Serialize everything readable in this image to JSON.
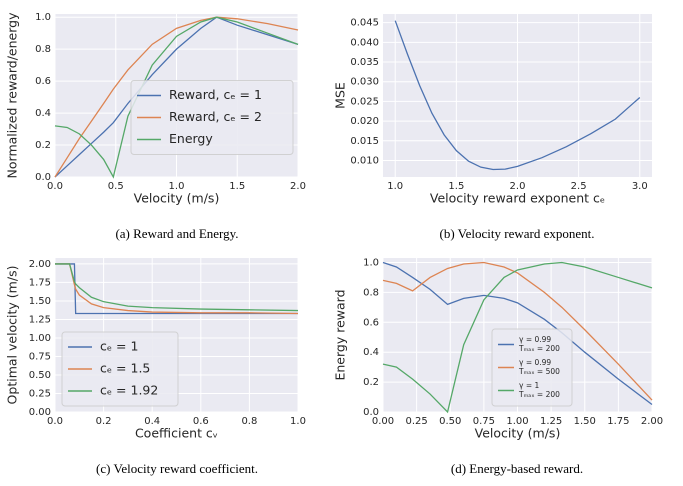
{
  "chart_data": [
    {
      "type": "line",
      "caption": "(a) Reward and Energy.",
      "x_label": "Velocity (m/s)",
      "y_label": "Normalized reward/energy",
      "x": [
        0,
        0.1,
        0.2,
        0.3,
        0.4,
        0.48,
        0.6,
        0.8,
        1.0,
        1.2,
        1.33,
        1.5,
        1.75,
        2.0
      ],
      "series": [
        {
          "name": "Reward, cₑ = 1",
          "color": "#4c72b0",
          "values": [
            0,
            0.07,
            0.14,
            0.21,
            0.28,
            0.34,
            0.46,
            0.64,
            0.8,
            0.93,
            1.0,
            0.95,
            0.89,
            0.83
          ]
        },
        {
          "name": "Reward, cₑ = 2",
          "color": "#dd8452",
          "values": [
            0,
            0.12,
            0.24,
            0.35,
            0.46,
            0.55,
            0.67,
            0.83,
            0.93,
            0.98,
            1.0,
            0.99,
            0.96,
            0.92
          ]
        },
        {
          "name": "Energy",
          "color": "#55a868",
          "values": [
            0.32,
            0.31,
            0.27,
            0.2,
            0.11,
            0.0,
            0.38,
            0.7,
            0.88,
            0.97,
            1.0,
            0.97,
            0.9,
            0.83
          ]
        }
      ],
      "xlim": [
        0,
        2
      ],
      "ylim": [
        0,
        1.02
      ],
      "xticks": [
        {
          "value": 0,
          "label": "0.0"
        },
        0.5,
        {
          "value": 1,
          "label": "1.0"
        },
        1.5,
        {
          "value": 2,
          "label": "2.0"
        }
      ],
      "yticks": [
        {
          "value": 0,
          "label": "0.0"
        },
        0.2,
        0.4,
        0.6,
        0.8,
        {
          "value": 1,
          "label": "1.0"
        }
      ],
      "grid": true,
      "legend": "center right"
    },
    {
      "type": "line",
      "caption": "(b) Velocity reward exponent.",
      "x_label": "Velocity reward exponent cₑ",
      "y_label": "MSE",
      "x": [
        1.0,
        1.1,
        1.2,
        1.3,
        1.4,
        1.5,
        1.6,
        1.7,
        1.8,
        1.9,
        2.0,
        2.2,
        2.4,
        2.6,
        2.8,
        3.0
      ],
      "series": [
        {
          "color": "#4c72b0",
          "values": [
            0.0455,
            0.037,
            0.029,
            0.022,
            0.0165,
            0.0125,
            0.0098,
            0.0083,
            0.0077,
            0.0078,
            0.0085,
            0.0107,
            0.0135,
            0.0168,
            0.0205,
            0.026
          ]
        }
      ],
      "xlim": [
        0.9,
        3.1
      ],
      "ylim": [
        0.0058,
        0.0472
      ],
      "xticks": [
        {
          "value": 1,
          "label": "1.0"
        },
        1.5,
        {
          "value": 2,
          "label": "2.0"
        },
        2.5,
        {
          "value": 3,
          "label": "3.0"
        }
      ],
      "yticks": [
        {
          "value": 0.01,
          "label": "0.010"
        },
        0.015,
        {
          "value": 0.02,
          "label": "0.020"
        },
        0.025,
        {
          "value": 0.03,
          "label": "0.030"
        },
        0.035,
        {
          "value": 0.04,
          "label": "0.040"
        },
        0.045
      ],
      "grid": true
    },
    {
      "type": "line",
      "caption": "(c) Velocity reward coefficient.",
      "x_label": "Coefficient cᵥ",
      "y_label": "Optimal velocity (m/s)",
      "x": [
        0,
        0.02,
        0.04,
        0.06,
        0.08,
        0.085,
        0.1,
        0.15,
        0.2,
        0.3,
        0.4,
        0.6,
        0.8,
        1.0
      ],
      "series": [
        {
          "name": "cₑ = 1",
          "color": "#4c72b0",
          "values": [
            2,
            2,
            2,
            2,
            2,
            1.33,
            1.33,
            1.33,
            1.33,
            1.33,
            1.33,
            1.33,
            1.33,
            1.33
          ]
        },
        {
          "name": "cₑ = 1.5",
          "color": "#dd8452",
          "values": [
            2,
            2,
            2,
            2,
            1.72,
            1.66,
            1.58,
            1.46,
            1.41,
            1.37,
            1.35,
            1.34,
            1.34,
            1.33
          ]
        },
        {
          "name": "cₑ = 1.92",
          "color": "#55a868",
          "values": [
            2,
            2,
            2,
            2,
            1.76,
            1.73,
            1.68,
            1.55,
            1.49,
            1.43,
            1.41,
            1.39,
            1.38,
            1.37
          ]
        }
      ],
      "xlim": [
        0,
        1
      ],
      "ylim": [
        0,
        2.08
      ],
      "xticks": [
        {
          "value": 0,
          "label": "0.0"
        },
        0.2,
        0.4,
        0.6,
        0.8,
        {
          "value": 1,
          "label": "1.0"
        }
      ],
      "yticks": [
        {
          "value": 0,
          "label": "0.00"
        },
        0.25,
        {
          "value": 0.5,
          "label": "0.50"
        },
        0.75,
        {
          "value": 1,
          "label": "1.00"
        },
        1.25,
        {
          "value": 1.5,
          "label": "1.50"
        },
        1.75,
        {
          "value": 2,
          "label": "2.00"
        }
      ],
      "grid": true,
      "legend": "lower left"
    },
    {
      "type": "line",
      "caption": "(d) Energy-based reward.",
      "x_label": "Velocity (m/s)",
      "y_label": "Energy reward",
      "x": [
        0,
        0.1,
        0.22,
        0.35,
        0.48,
        0.6,
        0.75,
        0.9,
        1.0,
        1.2,
        1.33,
        1.5,
        1.75,
        2.0
      ],
      "series": [
        {
          "name": [
            "γ = 0.99",
            "Tₘₐₓ = 200"
          ],
          "color": "#4c72b0",
          "values": [
            1.0,
            0.97,
            0.9,
            0.82,
            0.72,
            0.76,
            0.78,
            0.76,
            0.73,
            0.62,
            0.53,
            0.4,
            0.22,
            0.05
          ]
        },
        {
          "name": [
            "γ = 0.99",
            "Tₘₐₓ = 500"
          ],
          "color": "#dd8452",
          "values": [
            0.88,
            0.86,
            0.81,
            0.9,
            0.96,
            0.99,
            1.0,
            0.97,
            0.93,
            0.8,
            0.7,
            0.55,
            0.32,
            0.08
          ]
        },
        {
          "name": [
            "γ = 1",
            "Tₘₐₓ = 200"
          ],
          "color": "#55a868",
          "values": [
            0.32,
            0.3,
            0.22,
            0.12,
            0.0,
            0.45,
            0.75,
            0.9,
            0.95,
            0.99,
            1.0,
            0.97,
            0.9,
            0.83
          ]
        }
      ],
      "xlim": [
        0,
        2
      ],
      "ylim": [
        0,
        1.03
      ],
      "xticks": [
        {
          "value": 0,
          "label": "0.00"
        },
        0.25,
        {
          "value": 0.5,
          "label": "0.50"
        },
        0.75,
        {
          "value": 1,
          "label": "1.00"
        },
        1.25,
        {
          "value": 1.5,
          "label": "1.50"
        },
        1.75,
        {
          "value": 2,
          "label": "2.00"
        }
      ],
      "yticks": [
        {
          "value": 0,
          "label": "0.0"
        },
        0.2,
        0.4,
        0.6,
        0.8,
        {
          "value": 1,
          "label": "1.0"
        }
      ],
      "grid": true,
      "legend": "lower right"
    }
  ]
}
